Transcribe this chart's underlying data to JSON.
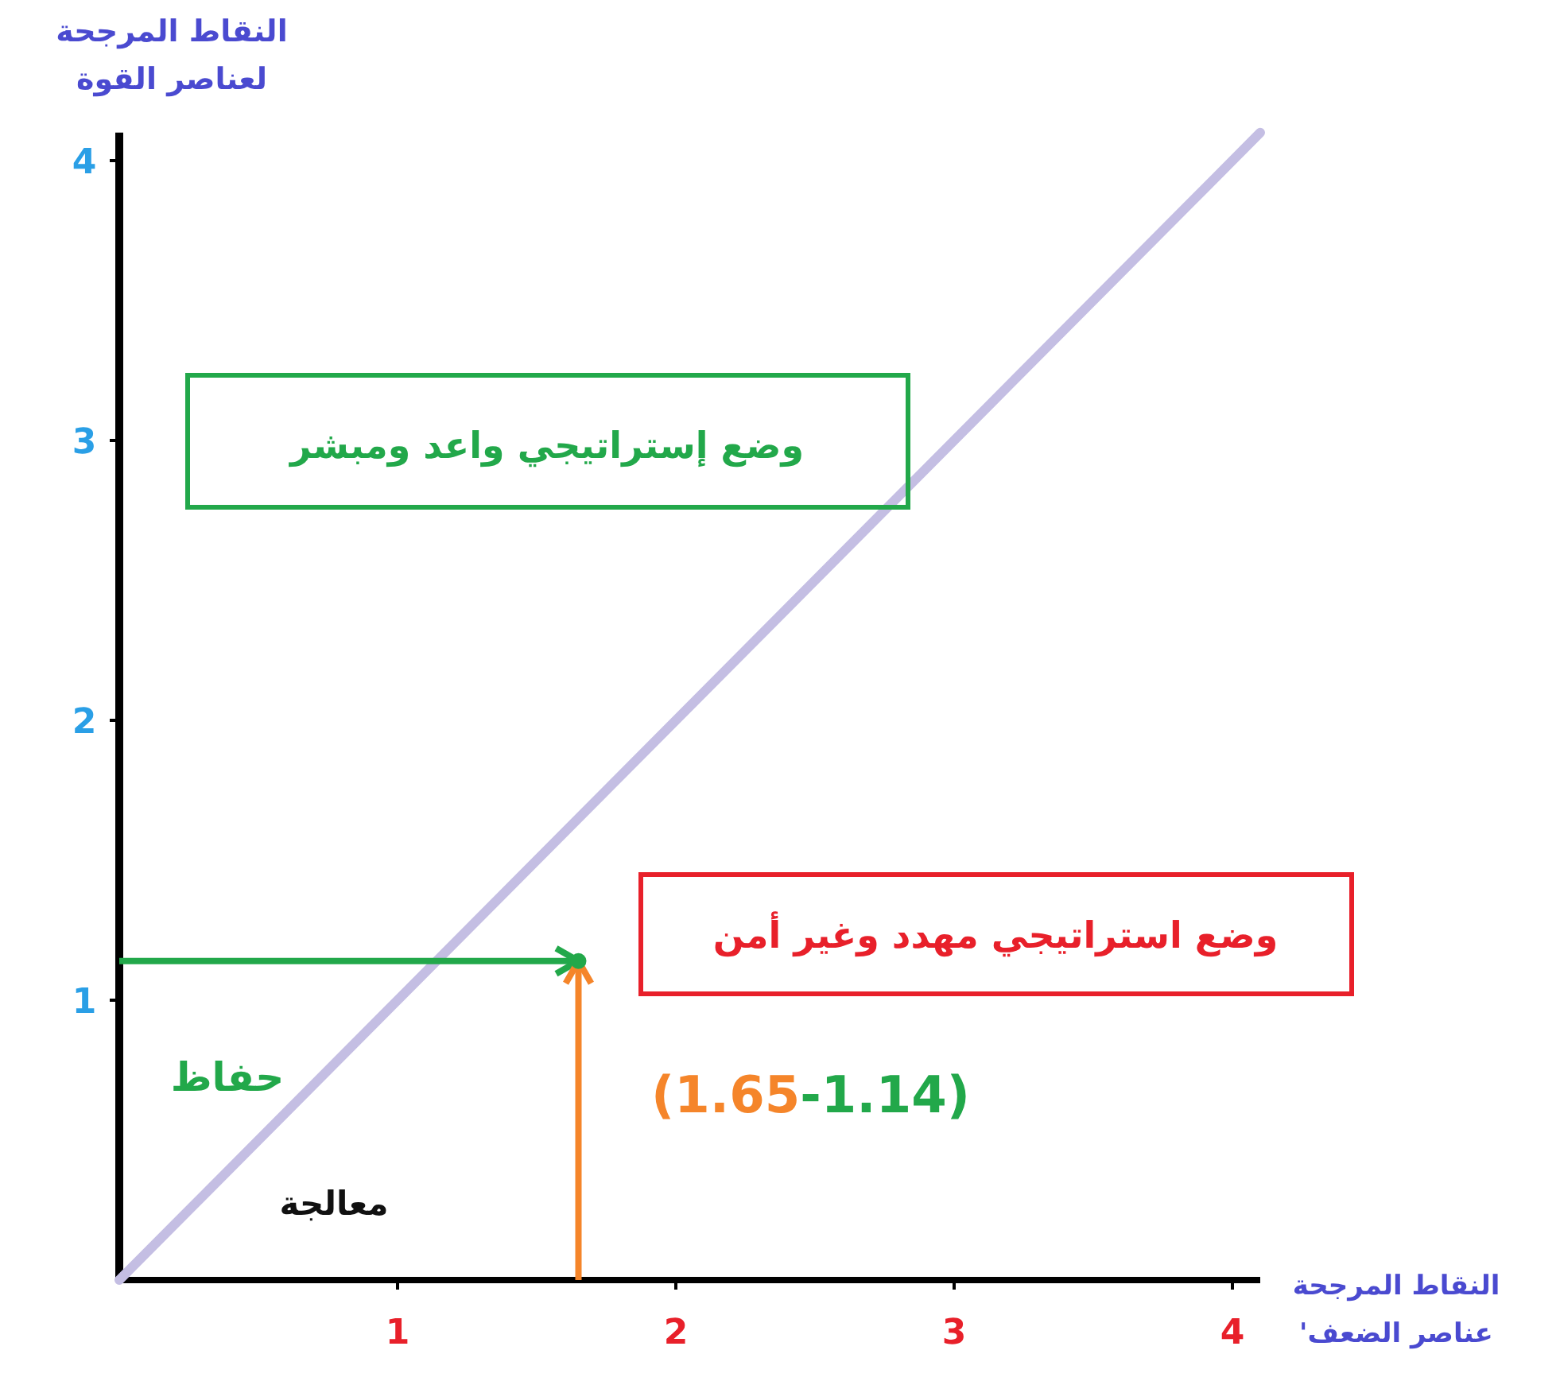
{
  "chart_data": {
    "type": "line",
    "xlabel": "النقاط المرجحة\n'عناصر الضعف",
    "ylabel": "النقاط المرجحة\nلعناصر القوة",
    "xlim": [
      0,
      4.1
    ],
    "ylim": [
      0,
      4.1
    ],
    "xticks": [
      1,
      2,
      3,
      4
    ],
    "yticks": [
      1,
      2,
      3,
      4
    ],
    "series": [
      {
        "color": "#c4bee3",
        "x": [
          0,
          4.1
        ],
        "values": [
          0,
          4.1
        ]
      },
      {
        "type": "scatter",
        "color": "#22a84a",
        "x": [
          1.65
        ],
        "values": [
          1.14
        ]
      }
    ],
    "annotations": [
      "(1.65-1.14)",
      "وضع إستراتيجي واعد ومبشر",
      "وضع استراتيجي مهدد وغير أمن",
      "حفاظ",
      "معالجة"
    ]
  }
}
